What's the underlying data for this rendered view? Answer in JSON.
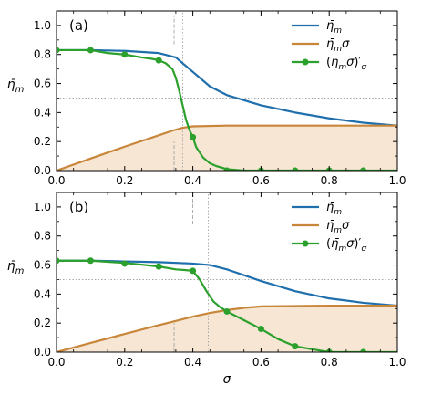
{
  "colors": {
    "eta": "#1f6fad",
    "eta_sigma": "#c8863a",
    "deriv": "#2ca02c",
    "fill": "#f6e6d3",
    "ref": "#9a9a9a"
  },
  "chart_data": [
    {
      "type": "line",
      "panel_label": "(a)",
      "xlabel": "σ",
      "ylabel": "η̄m",
      "xlim": [
        0.0,
        1.0
      ],
      "ylim": [
        0.0,
        1.1
      ],
      "x_ticks": [
        "0.0",
        "0.2",
        "0.4",
        "0.6",
        "0.8",
        "1.0"
      ],
      "y_ticks": [
        "0.0",
        "0.2",
        "0.4",
        "0.6",
        "0.8",
        "1.0"
      ],
      "legend": {
        "placement": "top-right",
        "entries": [
          "η̄m",
          "η̄mσ",
          "(η̄mσ)′σ"
        ]
      },
      "series": [
        {
          "name": "η̄m",
          "color": "#1f6fad",
          "x": [
            0,
            0.1,
            0.2,
            0.3,
            0.35,
            0.4,
            0.45,
            0.5,
            0.6,
            0.7,
            0.8,
            0.9,
            1.0
          ],
          "y": [
            0.83,
            0.83,
            0.825,
            0.81,
            0.78,
            0.68,
            0.58,
            0.52,
            0.45,
            0.4,
            0.36,
            0.33,
            0.31
          ]
        },
        {
          "name": "η̄mσ",
          "color": "#c8863a",
          "filled": true,
          "x": [
            0,
            0.1,
            0.2,
            0.3,
            0.34,
            0.37,
            0.4,
            0.5,
            0.6,
            0.8,
            1.0
          ],
          "y": [
            0,
            0.083,
            0.165,
            0.243,
            0.275,
            0.295,
            0.305,
            0.31,
            0.31,
            0.31,
            0.31
          ]
        },
        {
          "name": "(η̄mσ)′σ",
          "color": "#2ca02c",
          "x": [
            0,
            0.1,
            0.15,
            0.2,
            0.25,
            0.28,
            0.3,
            0.32,
            0.34,
            0.35,
            0.36,
            0.37,
            0.38,
            0.39,
            0.4,
            0.41,
            0.43,
            0.45,
            0.47,
            0.5,
            0.55,
            0.6,
            0.7,
            0.8,
            0.9,
            1.0
          ],
          "y": [
            0.83,
            0.83,
            0.81,
            0.8,
            0.78,
            0.77,
            0.76,
            0.74,
            0.7,
            0.64,
            0.55,
            0.45,
            0.35,
            0.28,
            0.23,
            0.16,
            0.09,
            0.05,
            0.03,
            0.01,
            0.0,
            0.0,
            0.0,
            0.0,
            0.0,
            0.0
          ]
        }
      ],
      "markers": {
        "x": [
          0,
          0.1,
          0.2,
          0.3,
          0.4,
          0.5,
          0.6,
          0.7,
          0.8,
          0.9
        ],
        "y": [
          0.83,
          0.83,
          0.8,
          0.76,
          0.23,
          0.0,
          0.0,
          0.0,
          0.0,
          0.0
        ]
      },
      "ref_lines": {
        "hline_y": 0.5,
        "vlines_dotted": [
          0.37
        ],
        "vlines_dashed": [
          {
            "x": 0.345,
            "y0": 0.0,
            "y1": 0.2
          },
          {
            "x": 0.345,
            "y0": 0.87,
            "y1": 1.07
          }
        ]
      }
    },
    {
      "type": "line",
      "panel_label": "(b)",
      "xlabel": "σ",
      "ylabel": "η̄m",
      "xlim": [
        0.0,
        1.0
      ],
      "ylim": [
        0.0,
        1.1
      ],
      "x_ticks": [
        "0.0",
        "0.2",
        "0.4",
        "0.6",
        "0.8",
        "1.0"
      ],
      "y_ticks": [
        "0.0",
        "0.2",
        "0.4",
        "0.6",
        "0.8",
        "1.0"
      ],
      "legend": {
        "placement": "top-right",
        "entries": [
          "η̄m",
          "η̄mσ",
          "(η̄mσ)′σ"
        ]
      },
      "series": [
        {
          "name": "η̄m",
          "color": "#1f6fad",
          "x": [
            0,
            0.1,
            0.2,
            0.3,
            0.4,
            0.45,
            0.5,
            0.55,
            0.6,
            0.7,
            0.8,
            0.9,
            1.0
          ],
          "y": [
            0.63,
            0.63,
            0.625,
            0.62,
            0.61,
            0.6,
            0.57,
            0.53,
            0.49,
            0.42,
            0.37,
            0.34,
            0.32
          ]
        },
        {
          "name": "η̄mσ",
          "color": "#c8863a",
          "filled": true,
          "x": [
            0,
            0.1,
            0.2,
            0.3,
            0.35,
            0.4,
            0.45,
            0.5,
            0.55,
            0.6,
            0.8,
            1.0
          ],
          "y": [
            0,
            0.063,
            0.125,
            0.186,
            0.215,
            0.245,
            0.27,
            0.29,
            0.305,
            0.315,
            0.32,
            0.32
          ]
        },
        {
          "name": "(η̄mσ)′σ",
          "color": "#2ca02c",
          "x": [
            0,
            0.1,
            0.2,
            0.3,
            0.35,
            0.38,
            0.4,
            0.42,
            0.44,
            0.46,
            0.48,
            0.5,
            0.55,
            0.6,
            0.65,
            0.7,
            0.75,
            0.8,
            0.9,
            1.0
          ],
          "y": [
            0.63,
            0.63,
            0.615,
            0.59,
            0.57,
            0.565,
            0.56,
            0.5,
            0.42,
            0.35,
            0.31,
            0.28,
            0.22,
            0.16,
            0.09,
            0.04,
            0.02,
            0.0,
            0.0,
            0.0
          ]
        }
      ],
      "markers": {
        "x": [
          0,
          0.1,
          0.2,
          0.3,
          0.4,
          0.5,
          0.6,
          0.7,
          0.8,
          0.9
        ],
        "y": [
          0.63,
          0.63,
          0.61,
          0.59,
          0.56,
          0.28,
          0.16,
          0.04,
          0.0,
          0.0
        ]
      },
      "ref_lines": {
        "hline_y": 0.5,
        "vlines_dotted": [
          0.445
        ],
        "vlines_dashed": [
          {
            "x": 0.345,
            "y0": 0.0,
            "y1": 0.2
          },
          {
            "x": 0.4,
            "y0": 0.88,
            "y1": 1.08
          }
        ]
      }
    }
  ]
}
